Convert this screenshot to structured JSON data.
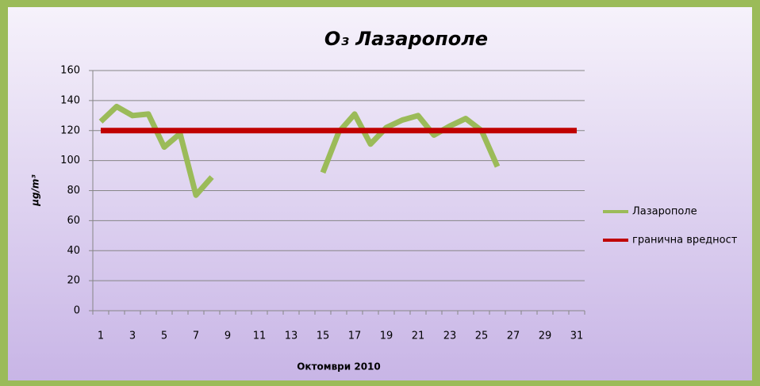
{
  "chart_data": {
    "type": "line",
    "title": "O₃ Лазарополе",
    "y_label": "µg/m³",
    "x_label": "Октомври 2010",
    "categories": [
      1,
      null,
      3,
      null,
      5,
      null,
      7,
      null,
      9,
      null,
      11,
      null,
      13,
      null,
      15,
      null,
      17,
      null,
      19,
      null,
      21,
      null,
      23,
      null,
      25,
      null,
      27,
      null,
      29,
      null,
      31
    ],
    "series": [
      {
        "name": "Лазарополе",
        "color": "#9bbb59",
        "values": [
          126,
          136,
          130,
          131,
          109,
          118,
          77,
          89,
          null,
          null,
          null,
          null,
          null,
          null,
          92,
          119,
          131,
          111,
          122,
          127,
          130,
          117,
          123,
          128,
          120,
          96,
          null,
          null,
          null,
          null,
          null
        ]
      },
      {
        "name": "гранична вредност",
        "color": "#c00000",
        "values": [
          120,
          120,
          120,
          120,
          120,
          120,
          120,
          120,
          120,
          120,
          120,
          120,
          120,
          120,
          120,
          120,
          120,
          120,
          120,
          120,
          120,
          120,
          120,
          120,
          120,
          120,
          120,
          120,
          120,
          120,
          120
        ]
      }
    ],
    "ylim": [
      0,
      160
    ],
    "yticks": [
      0,
      20,
      40,
      60,
      80,
      100,
      120,
      140,
      160
    ],
    "grid": true,
    "legend": "right"
  }
}
